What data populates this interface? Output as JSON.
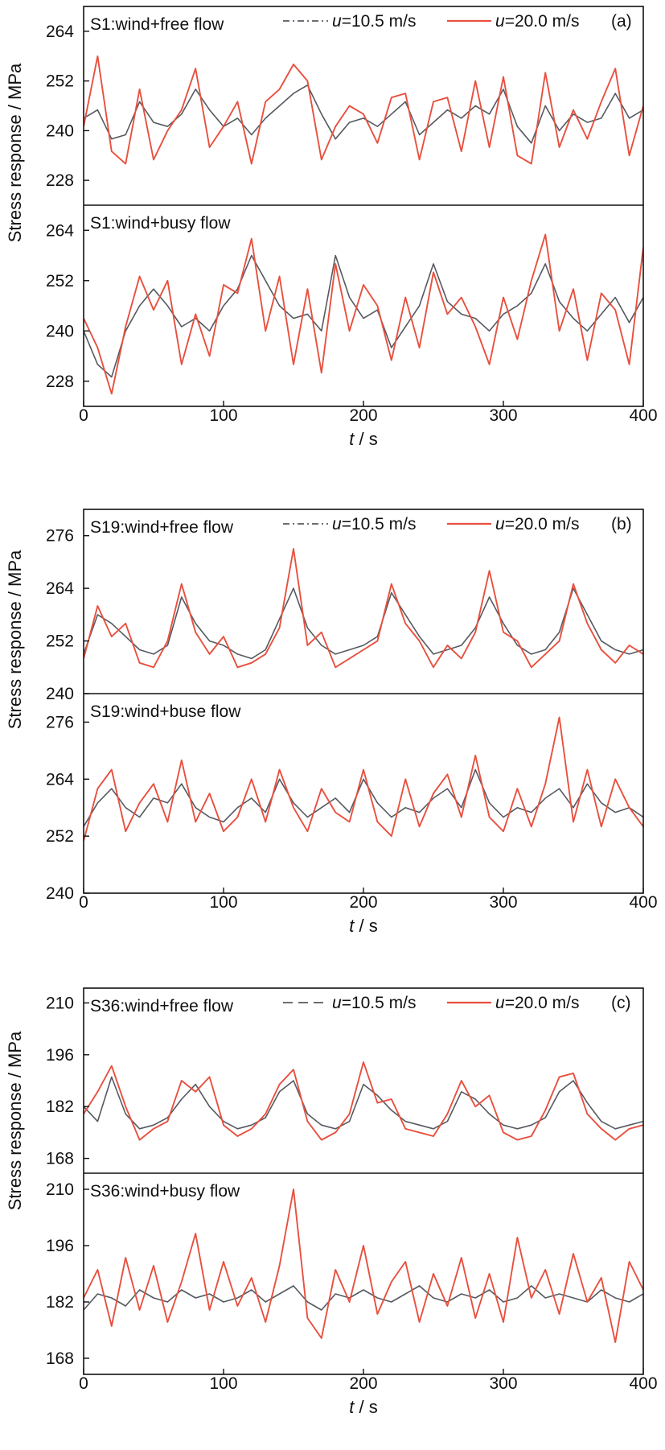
{
  "x_axis_label": "t / s",
  "y_axis_label": "Stress response / MPa",
  "legend": [
    "u=10.5 m/s",
    "u=20.0 m/s"
  ],
  "series_colors": {
    "u=10.5 m/s": "#555a60",
    "u=20.0 m/s": "#e8503f"
  },
  "chart_data": [
    {
      "type": "line",
      "group": "(a)",
      "subplots": [
        {
          "title": "S1:wind+free flow",
          "ylim": [
            222,
            270
          ],
          "yticks": [
            228,
            240,
            252,
            264
          ],
          "x": [
            0,
            10,
            20,
            30,
            40,
            50,
            60,
            70,
            80,
            90,
            100,
            110,
            120,
            130,
            140,
            150,
            160,
            170,
            180,
            190,
            200,
            210,
            220,
            230,
            240,
            250,
            260,
            270,
            280,
            290,
            300,
            310,
            320,
            330,
            340,
            350,
            360,
            370,
            380,
            390,
            400
          ],
          "series": [
            {
              "name": "u=10.5 m/s",
              "values": [
                243,
                245,
                238,
                239,
                247,
                242,
                241,
                244,
                250,
                245,
                241,
                243,
                239,
                243,
                246,
                249,
                251,
                244,
                238,
                242,
                243,
                241,
                244,
                247,
                239,
                242,
                245,
                243,
                246,
                244,
                250,
                241,
                237,
                246,
                240,
                244,
                242,
                243,
                249,
                243,
                245
              ]
            },
            {
              "name": "u=20.0 m/s",
              "values": [
                241,
                258,
                235,
                232,
                250,
                233,
                240,
                245,
                255,
                236,
                241,
                247,
                232,
                247,
                250,
                256,
                252,
                233,
                241,
                246,
                244,
                237,
                248,
                249,
                233,
                247,
                248,
                235,
                252,
                236,
                253,
                234,
                232,
                254,
                236,
                245,
                238,
                247,
                255,
                234,
                246
              ]
            }
          ]
        },
        {
          "title": "S1:wind+busy flow",
          "ylim": [
            222,
            270
          ],
          "yticks": [
            228,
            240,
            252,
            264
          ],
          "x": [
            0,
            10,
            20,
            30,
            40,
            50,
            60,
            70,
            80,
            90,
            100,
            110,
            120,
            130,
            140,
            150,
            160,
            170,
            180,
            190,
            200,
            210,
            220,
            230,
            240,
            250,
            260,
            270,
            280,
            290,
            300,
            310,
            320,
            330,
            340,
            350,
            360,
            370,
            380,
            390,
            400
          ],
          "series": [
            {
              "name": "u=10.5 m/s",
              "values": [
                240,
                232,
                229,
                240,
                246,
                250,
                246,
                241,
                243,
                240,
                246,
                250,
                258,
                252,
                246,
                243,
                244,
                240,
                258,
                248,
                243,
                245,
                236,
                241,
                246,
                256,
                247,
                244,
                243,
                240,
                244,
                246,
                249,
                256,
                247,
                243,
                240,
                244,
                248,
                242,
                248
              ]
            },
            {
              "name": "u=20.0 m/s",
              "values": [
                243,
                236,
                225,
                241,
                253,
                245,
                252,
                232,
                244,
                234,
                251,
                249,
                262,
                240,
                253,
                232,
                250,
                230,
                256,
                240,
                251,
                246,
                233,
                248,
                236,
                254,
                244,
                248,
                241,
                232,
                248,
                238,
                252,
                263,
                240,
                250,
                233,
                249,
                245,
                232,
                260
              ]
            }
          ]
        }
      ]
    },
    {
      "type": "line",
      "group": "(b)",
      "subplots": [
        {
          "title": "S19:wind+free flow",
          "ylim": [
            240,
            282
          ],
          "yticks": [
            240,
            252,
            264,
            276
          ],
          "x": [
            0,
            10,
            20,
            30,
            40,
            50,
            60,
            70,
            80,
            90,
            100,
            110,
            120,
            130,
            140,
            150,
            160,
            170,
            180,
            190,
            200,
            210,
            220,
            230,
            240,
            250,
            260,
            270,
            280,
            290,
            300,
            310,
            320,
            330,
            340,
            350,
            360,
            370,
            380,
            390,
            400
          ],
          "series": [
            {
              "name": "u=10.5 m/s",
              "values": [
                249,
                258,
                256,
                253,
                250,
                249,
                251,
                262,
                256,
                252,
                251,
                249,
                248,
                250,
                257,
                264,
                255,
                251,
                249,
                250,
                251,
                253,
                263,
                258,
                253,
                249,
                250,
                251,
                255,
                262,
                256,
                251,
                249,
                250,
                254,
                264,
                258,
                252,
                250,
                249,
                250
              ]
            },
            {
              "name": "u=20.0 m/s",
              "values": [
                248,
                260,
                253,
                256,
                247,
                246,
                252,
                265,
                254,
                249,
                253,
                246,
                247,
                249,
                255,
                273,
                251,
                254,
                246,
                248,
                250,
                252,
                265,
                256,
                252,
                246,
                251,
                248,
                254,
                268,
                254,
                252,
                246,
                249,
                252,
                265,
                256,
                250,
                247,
                251,
                249
              ]
            }
          ]
        },
        {
          "title": "S19:wind+buse flow",
          "ylim": [
            240,
            282
          ],
          "yticks": [
            240,
            252,
            264,
            276
          ],
          "x": [
            0,
            10,
            20,
            30,
            40,
            50,
            60,
            70,
            80,
            90,
            100,
            110,
            120,
            130,
            140,
            150,
            160,
            170,
            180,
            190,
            200,
            210,
            220,
            230,
            240,
            250,
            260,
            270,
            280,
            290,
            300,
            310,
            320,
            330,
            340,
            350,
            360,
            370,
            380,
            390,
            400
          ],
          "series": [
            {
              "name": "u=10.5 m/s",
              "values": [
                254,
                259,
                262,
                258,
                256,
                260,
                259,
                263,
                258,
                256,
                255,
                258,
                260,
                257,
                264,
                259,
                256,
                258,
                260,
                257,
                264,
                259,
                256,
                258,
                257,
                260,
                262,
                258,
                266,
                259,
                256,
                258,
                257,
                260,
                262,
                258,
                263,
                259,
                257,
                258,
                256
              ]
            },
            {
              "name": "u=20.0 m/s",
              "values": [
                251,
                262,
                266,
                253,
                259,
                263,
                255,
                268,
                255,
                261,
                253,
                256,
                264,
                255,
                266,
                258,
                253,
                262,
                257,
                255,
                266,
                255,
                252,
                264,
                254,
                261,
                265,
                256,
                269,
                256,
                253,
                262,
                254,
                263,
                277,
                255,
                266,
                254,
                264,
                258,
                254
              ]
            }
          ]
        }
      ]
    },
    {
      "type": "line",
      "group": "(c)",
      "subplots": [
        {
          "title": "S36:wind+free flow",
          "ylim": [
            164,
            214
          ],
          "yticks": [
            168,
            182,
            196,
            210
          ],
          "x": [
            0,
            10,
            20,
            30,
            40,
            50,
            60,
            70,
            80,
            90,
            100,
            110,
            120,
            130,
            140,
            150,
            160,
            170,
            180,
            190,
            200,
            210,
            220,
            230,
            240,
            250,
            260,
            270,
            280,
            290,
            300,
            310,
            320,
            330,
            340,
            350,
            360,
            370,
            380,
            390,
            400
          ],
          "series": [
            {
              "name": "u=10.5 m/s",
              "values": [
                182,
                178,
                190,
                180,
                176,
                177,
                179,
                184,
                188,
                182,
                178,
                176,
                177,
                179,
                186,
                189,
                180,
                177,
                176,
                178,
                188,
                185,
                181,
                178,
                177,
                176,
                178,
                186,
                184,
                180,
                177,
                176,
                177,
                179,
                186,
                189,
                183,
                178,
                176,
                177,
                178
              ]
            },
            {
              "name": "u=20.0 m/s",
              "values": [
                180,
                186,
                193,
                182,
                173,
                176,
                178,
                189,
                186,
                190,
                177,
                174,
                176,
                180,
                188,
                192,
                178,
                173,
                175,
                180,
                194,
                183,
                184,
                176,
                175,
                174,
                180,
                189,
                182,
                185,
                175,
                173,
                174,
                181,
                190,
                191,
                180,
                176,
                173,
                176,
                177
              ]
            }
          ]
        },
        {
          "title": "S36:wind+busy flow",
          "ylim": [
            164,
            214
          ],
          "yticks": [
            168,
            182,
            196,
            210
          ],
          "x": [
            0,
            10,
            20,
            30,
            40,
            50,
            60,
            70,
            80,
            90,
            100,
            110,
            120,
            130,
            140,
            150,
            160,
            170,
            180,
            190,
            200,
            210,
            220,
            230,
            240,
            250,
            260,
            270,
            280,
            290,
            300,
            310,
            320,
            330,
            340,
            350,
            360,
            370,
            380,
            390,
            400
          ],
          "series": [
            {
              "name": "u=10.5 m/s",
              "values": [
                180,
                184,
                183,
                181,
                185,
                183,
                182,
                185,
                183,
                184,
                182,
                183,
                185,
                182,
                184,
                186,
                182,
                180,
                184,
                183,
                185,
                183,
                182,
                184,
                186,
                183,
                182,
                184,
                183,
                185,
                182,
                183,
                186,
                183,
                184,
                183,
                182,
                185,
                183,
                182,
                184
              ]
            },
            {
              "name": "u=20.0 m/s",
              "values": [
                183,
                190,
                176,
                193,
                180,
                191,
                177,
                187,
                199,
                180,
                192,
                181,
                188,
                177,
                191,
                210,
                178,
                173,
                190,
                182,
                196,
                179,
                187,
                192,
                177,
                189,
                181,
                193,
                178,
                189,
                177,
                198,
                183,
                190,
                179,
                194,
                182,
                188,
                172,
                192,
                185
              ]
            }
          ]
        }
      ]
    }
  ],
  "figure": {
    "group_labels": [
      "(a)",
      "(b)",
      "(c)"
    ],
    "xlim": [
      0,
      400
    ],
    "xticks": [
      0,
      100,
      200,
      300,
      400
    ]
  }
}
